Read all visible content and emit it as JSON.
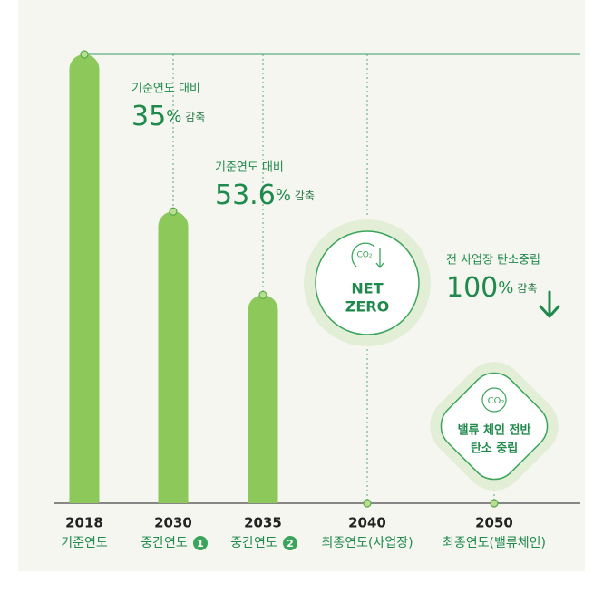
{
  "chart_data": {
    "type": "bar",
    "categories": [
      "2018",
      "2030",
      "2035",
      "2040",
      "2050"
    ],
    "sublabels": [
      "기준연도",
      "중간연도",
      "중간연도",
      "최종연도(사업장)",
      "최종연도(밸류체인)"
    ],
    "badges": {
      "2030": "1",
      "2035": "2"
    },
    "values": [
      100,
      65,
      46.4,
      0,
      0
    ],
    "ylim": [
      0,
      100
    ],
    "color": "#8cc85a",
    "annotations": [
      {
        "caption": "기준연도 대비",
        "value": 35,
        "unit": "%",
        "suffix": "감축"
      },
      {
        "caption": "기준연도 대비",
        "value": 53.6,
        "unit": "%",
        "suffix": "감축"
      },
      {
        "caption": "전 사업장 탄소중립",
        "value": 100,
        "unit": "%",
        "suffix": "감축"
      }
    ],
    "net_zero": {
      "icon": "CO₂",
      "lines": [
        "NET",
        "ZERO"
      ]
    },
    "value_chain": {
      "icon": "CO₂",
      "lines": [
        "밸류 체인 전반",
        "탄소 중립"
      ]
    }
  }
}
